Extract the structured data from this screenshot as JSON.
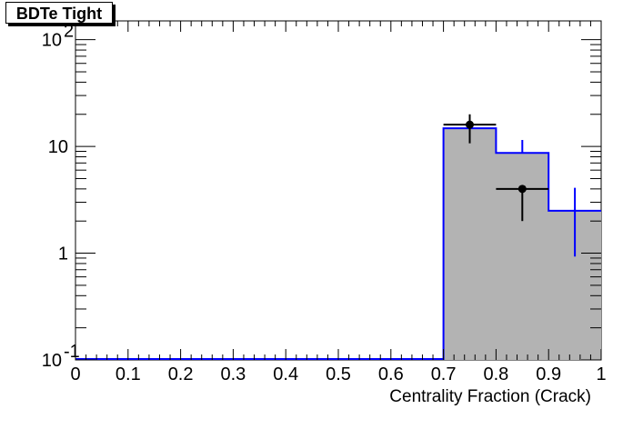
{
  "chart_data": {
    "type": "bar",
    "title": "BDTe Tight",
    "xlabel": "Centrality Fraction (Crack)",
    "ylabel": "",
    "xlim": [
      0,
      1
    ],
    "ylim": [
      0.1,
      150
    ],
    "yscale": "log",
    "grid": false,
    "x_tick_labels": [
      "0",
      "0.1",
      "0.2",
      "0.3",
      "0.4",
      "0.5",
      "0.6",
      "0.7",
      "0.8",
      "0.9",
      "1"
    ],
    "y_tick_labels": [
      {
        "value": 0.1,
        "base": "10",
        "exp": "-1"
      },
      {
        "value": 1,
        "base": "1",
        "exp": ""
      },
      {
        "value": 10,
        "base": "10",
        "exp": ""
      },
      {
        "value": 100,
        "base": "10",
        "exp": "2"
      }
    ],
    "bin_edges": [
      0,
      0.1,
      0.2,
      0.3,
      0.4,
      0.5,
      0.6,
      0.7,
      0.8,
      0.9,
      1.0
    ],
    "series": [
      {
        "kind": "filled-histogram",
        "color": "#0000ff",
        "fill": "#b3b3b3",
        "values": [
          0,
          0,
          0,
          0,
          0,
          0,
          0,
          14.8,
          8.7,
          2.5
        ],
        "err_low": [
          0,
          0,
          0,
          0,
          0,
          0,
          0,
          0,
          0,
          1.57
        ],
        "err_high": [
          0,
          0,
          0,
          0,
          0,
          0,
          0,
          0,
          2.8,
          1.6
        ]
      },
      {
        "kind": "data-points",
        "color": "#000000",
        "points": [
          {
            "x": 0.75,
            "y": 16,
            "x_err": 0.05,
            "err_low": 5.3,
            "err_high": 4.0
          },
          {
            "x": 0.85,
            "y": 4,
            "x_err": 0.05,
            "err_low": 2.0,
            "err_high": 0
          }
        ]
      }
    ]
  }
}
